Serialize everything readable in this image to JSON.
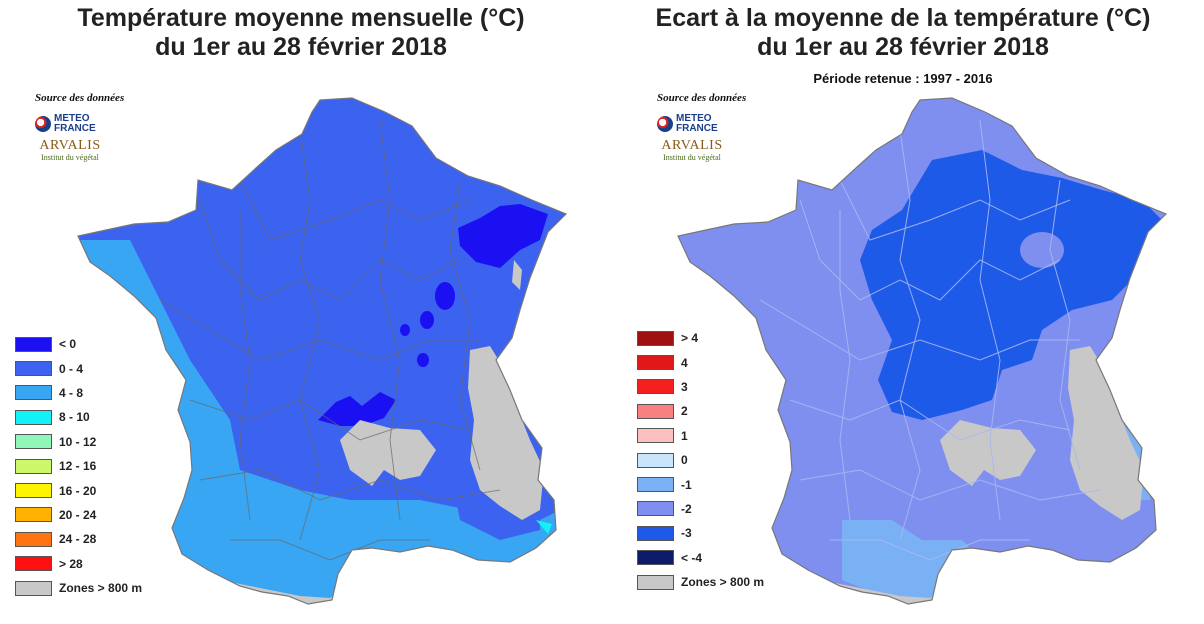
{
  "left": {
    "title_line1": "Température moyenne mensuelle (°C)",
    "title_line2": "du 1er au 28 février 2018",
    "source_label": "Source des données",
    "logo_meteo_line1": "METEO",
    "logo_meteo_line2": "FRANCE",
    "logo_arvalis_name": "ARVALIS",
    "logo_arvalis_tagline": "Institut du végétal",
    "legend": [
      {
        "label": "< 0",
        "color": "#1a10f2"
      },
      {
        "label": "0 - 4",
        "color": "#3c62f0"
      },
      {
        "label": "4 - 8",
        "color": "#38a6f3"
      },
      {
        "label": "8 - 10",
        "color": "#12f2f6"
      },
      {
        "label": "10 - 12",
        "color": "#8ff7b8"
      },
      {
        "label": "12 - 16",
        "color": "#cdf76a"
      },
      {
        "label": "16 - 20",
        "color": "#fff400"
      },
      {
        "label": "20 - 24",
        "color": "#ffb200"
      },
      {
        "label": "24 - 28",
        "color": "#ff7410"
      },
      {
        "label": "> 28",
        "color": "#ff1010"
      },
      {
        "label": "Zones > 800 m",
        "color": "#c8c8c8"
      }
    ]
  },
  "right": {
    "title_line1": "Ecart à la moyenne de la température (°C)",
    "title_line2": "du 1er au 28 février 2018",
    "subtitle": "Période retenue : 1997 - 2016",
    "source_label": "Source des données",
    "logo_meteo_line1": "METEO",
    "logo_meteo_line2": "FRANCE",
    "logo_arvalis_name": "ARVALIS",
    "logo_arvalis_tagline": "Institut du végétal",
    "legend": [
      {
        "label": "> 4",
        "color": "#a01010"
      },
      {
        "label": "4",
        "color": "#e01818"
      },
      {
        "label": "3",
        "color": "#f42020"
      },
      {
        "label": "2",
        "color": "#f88080"
      },
      {
        "label": "1",
        "color": "#fcc0c0"
      },
      {
        "label": "0",
        "color": "#c8e4fa"
      },
      {
        "label": "-1",
        "color": "#7ab0f4"
      },
      {
        "label": "-2",
        "color": "#7f8ff0"
      },
      {
        "label": "-3",
        "color": "#1e5ae8"
      },
      {
        "label": "< -4",
        "color": "#0e1a6a"
      },
      {
        "label": "Zones > 800 m",
        "color": "#c8c8c8"
      }
    ]
  }
}
